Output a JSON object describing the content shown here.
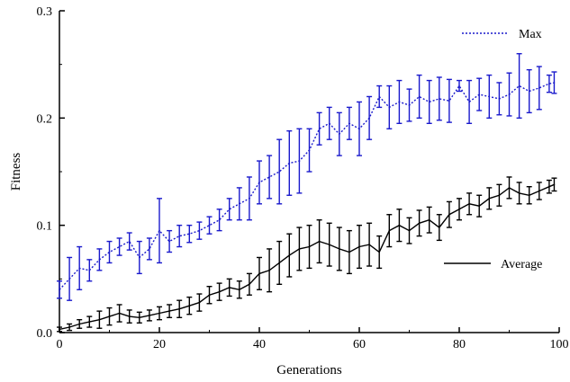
{
  "chart_data": {
    "type": "line",
    "xlabel": "Generations",
    "ylabel": "Fitness",
    "xlim": [
      0,
      100
    ],
    "ylim": [
      0,
      0.3
    ],
    "x_ticks": [
      0,
      20,
      40,
      60,
      80,
      100
    ],
    "x_tick_labels": [
      "0",
      "20",
      "40",
      "60",
      "80",
      "100"
    ],
    "y_ticks": [
      0,
      0.1,
      0.2,
      0.3
    ],
    "y_tick_labels": [
      "0.0",
      "0.1",
      "0.2",
      "0.3"
    ],
    "legend": [
      {
        "name": "Max",
        "style": "dotted",
        "position": "top-right"
      },
      {
        "name": "Average",
        "style": "solid",
        "position": "center-right"
      }
    ],
    "series": [
      {
        "name": "Max",
        "color": "#1a1acc",
        "dash": "dotted",
        "x": [
          0,
          2,
          4,
          6,
          8,
          10,
          12,
          14,
          16,
          18,
          20,
          22,
          24,
          26,
          28,
          30,
          32,
          34,
          36,
          38,
          40,
          42,
          44,
          46,
          48,
          50,
          52,
          54,
          56,
          58,
          60,
          62,
          64,
          66,
          68,
          70,
          72,
          74,
          76,
          78,
          80,
          82,
          84,
          86,
          88,
          90,
          92,
          94,
          96,
          98,
          99
        ],
        "y": [
          0.04,
          0.05,
          0.06,
          0.058,
          0.068,
          0.075,
          0.08,
          0.085,
          0.07,
          0.078,
          0.095,
          0.085,
          0.09,
          0.092,
          0.095,
          0.1,
          0.105,
          0.115,
          0.12,
          0.125,
          0.14,
          0.145,
          0.15,
          0.158,
          0.16,
          0.17,
          0.19,
          0.195,
          0.185,
          0.195,
          0.19,
          0.2,
          0.22,
          0.21,
          0.215,
          0.212,
          0.22,
          0.215,
          0.218,
          0.216,
          0.23,
          0.215,
          0.222,
          0.22,
          0.218,
          0.222,
          0.23,
          0.225,
          0.228,
          0.232,
          0.233
        ],
        "err": [
          0.008,
          0.02,
          0.02,
          0.01,
          0.01,
          0.01,
          0.008,
          0.008,
          0.015,
          0.01,
          0.03,
          0.01,
          0.01,
          0.008,
          0.008,
          0.008,
          0.01,
          0.01,
          0.015,
          0.02,
          0.02,
          0.02,
          0.03,
          0.03,
          0.03,
          0.02,
          0.015,
          0.015,
          0.02,
          0.015,
          0.025,
          0.02,
          0.01,
          0.02,
          0.02,
          0.015,
          0.02,
          0.02,
          0.02,
          0.02,
          0.005,
          0.02,
          0.015,
          0.02,
          0.015,
          0.02,
          0.03,
          0.02,
          0.02,
          0.008,
          0.01
        ]
      },
      {
        "name": "Average",
        "color": "#000000",
        "dash": "solid",
        "x": [
          0,
          2,
          4,
          6,
          8,
          10,
          12,
          14,
          16,
          18,
          20,
          22,
          24,
          26,
          28,
          30,
          32,
          34,
          36,
          38,
          40,
          42,
          44,
          46,
          48,
          50,
          52,
          54,
          56,
          58,
          60,
          62,
          64,
          66,
          68,
          70,
          72,
          74,
          76,
          78,
          80,
          82,
          84,
          86,
          88,
          90,
          92,
          94,
          96,
          98,
          99
        ],
        "y": [
          0.003,
          0.005,
          0.008,
          0.01,
          0.012,
          0.015,
          0.018,
          0.015,
          0.014,
          0.016,
          0.018,
          0.02,
          0.022,
          0.025,
          0.028,
          0.035,
          0.038,
          0.042,
          0.04,
          0.045,
          0.055,
          0.058,
          0.065,
          0.072,
          0.078,
          0.08,
          0.085,
          0.082,
          0.078,
          0.075,
          0.08,
          0.082,
          0.075,
          0.095,
          0.1,
          0.095,
          0.102,
          0.105,
          0.098,
          0.11,
          0.115,
          0.12,
          0.118,
          0.125,
          0.128,
          0.135,
          0.13,
          0.128,
          0.132,
          0.136,
          0.138
        ],
        "err": [
          0.002,
          0.003,
          0.004,
          0.005,
          0.008,
          0.008,
          0.008,
          0.006,
          0.005,
          0.005,
          0.006,
          0.006,
          0.008,
          0.008,
          0.008,
          0.008,
          0.008,
          0.008,
          0.008,
          0.01,
          0.015,
          0.02,
          0.02,
          0.02,
          0.02,
          0.02,
          0.02,
          0.02,
          0.02,
          0.02,
          0.02,
          0.02,
          0.015,
          0.015,
          0.015,
          0.012,
          0.012,
          0.012,
          0.012,
          0.012,
          0.01,
          0.01,
          0.01,
          0.01,
          0.01,
          0.01,
          0.01,
          0.008,
          0.008,
          0.006,
          0.006
        ]
      }
    ]
  }
}
